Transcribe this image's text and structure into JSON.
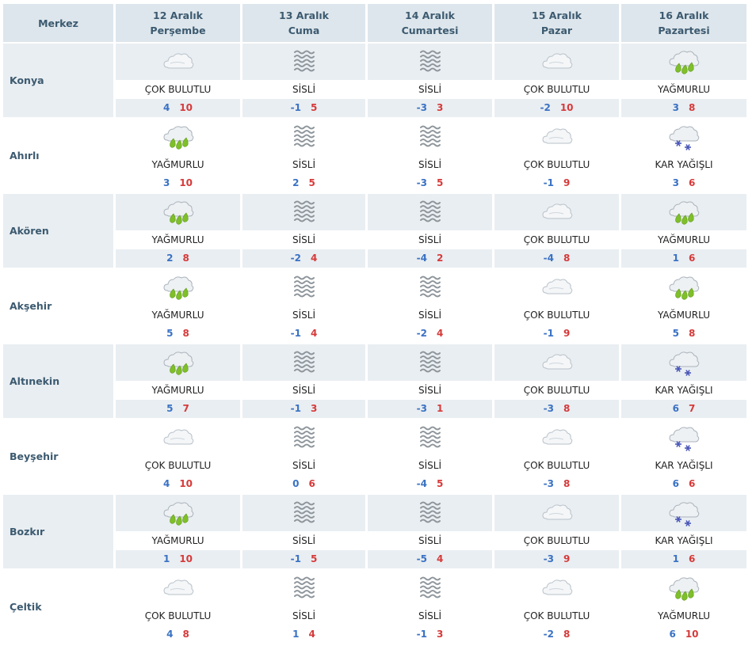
{
  "header": {
    "region": "Merkez",
    "days": [
      {
        "date": "12 Aralık",
        "weekday": "Perşembe"
      },
      {
        "date": "13 Aralık",
        "weekday": "Cuma"
      },
      {
        "date": "14 Aralık",
        "weekday": "Cumartesi"
      },
      {
        "date": "15 Aralık",
        "weekday": "Pazar"
      },
      {
        "date": "16 Aralık",
        "weekday": "Pazartesi"
      }
    ]
  },
  "labels": {
    "cok_bulutlu": "ÇOK BULUTLU",
    "sisli": "SİSLİ",
    "yagmurlu": "YAĞMURLU",
    "kar_yagisli": "KAR YAĞIŞLI"
  },
  "colors": {
    "header_bg": "#dde6ec",
    "stripe_bg": "#e9eef2",
    "min_temp": "#3a72c4",
    "max_temp": "#d63a3a"
  },
  "rows": [
    {
      "city": "Konya",
      "days": [
        {
          "cond": "cok_bulutlu",
          "min": "4",
          "max": "10"
        },
        {
          "cond": "sisli",
          "min": "-1",
          "max": "5"
        },
        {
          "cond": "sisli",
          "min": "-3",
          "max": "3"
        },
        {
          "cond": "cok_bulutlu",
          "min": "-2",
          "max": "10"
        },
        {
          "cond": "yagmurlu",
          "min": "3",
          "max": "8"
        }
      ]
    },
    {
      "city": "Ahırlı",
      "days": [
        {
          "cond": "yagmurlu",
          "min": "3",
          "max": "10"
        },
        {
          "cond": "sisli",
          "min": "2",
          "max": "5"
        },
        {
          "cond": "sisli",
          "min": "-3",
          "max": "5"
        },
        {
          "cond": "cok_bulutlu",
          "min": "-1",
          "max": "9"
        },
        {
          "cond": "kar_yagisli",
          "min": "3",
          "max": "6"
        }
      ]
    },
    {
      "city": "Akören",
      "days": [
        {
          "cond": "yagmurlu",
          "min": "2",
          "max": "8"
        },
        {
          "cond": "sisli",
          "min": "-2",
          "max": "4"
        },
        {
          "cond": "sisli",
          "min": "-4",
          "max": "2"
        },
        {
          "cond": "cok_bulutlu",
          "min": "-4",
          "max": "8"
        },
        {
          "cond": "yagmurlu",
          "min": "1",
          "max": "6"
        }
      ]
    },
    {
      "city": "Akşehir",
      "days": [
        {
          "cond": "yagmurlu",
          "min": "5",
          "max": "8"
        },
        {
          "cond": "sisli",
          "min": "-1",
          "max": "4"
        },
        {
          "cond": "sisli",
          "min": "-2",
          "max": "4"
        },
        {
          "cond": "cok_bulutlu",
          "min": "-1",
          "max": "9"
        },
        {
          "cond": "yagmurlu",
          "min": "5",
          "max": "8"
        }
      ]
    },
    {
      "city": "Altınekin",
      "days": [
        {
          "cond": "yagmurlu",
          "min": "5",
          "max": "7"
        },
        {
          "cond": "sisli",
          "min": "-1",
          "max": "3"
        },
        {
          "cond": "sisli",
          "min": "-3",
          "max": "1"
        },
        {
          "cond": "cok_bulutlu",
          "min": "-3",
          "max": "8"
        },
        {
          "cond": "kar_yagisli",
          "min": "6",
          "max": "7"
        }
      ]
    },
    {
      "city": "Beyşehir",
      "days": [
        {
          "cond": "cok_bulutlu",
          "min": "4",
          "max": "10"
        },
        {
          "cond": "sisli",
          "min": "0",
          "max": "6"
        },
        {
          "cond": "sisli",
          "min": "-4",
          "max": "5"
        },
        {
          "cond": "cok_bulutlu",
          "min": "-3",
          "max": "8"
        },
        {
          "cond": "kar_yagisli",
          "min": "6",
          "max": "6"
        }
      ]
    },
    {
      "city": "Bozkır",
      "days": [
        {
          "cond": "yagmurlu",
          "min": "1",
          "max": "10"
        },
        {
          "cond": "sisli",
          "min": "-1",
          "max": "5"
        },
        {
          "cond": "sisli",
          "min": "-5",
          "max": "4"
        },
        {
          "cond": "cok_bulutlu",
          "min": "-3",
          "max": "9"
        },
        {
          "cond": "kar_yagisli",
          "min": "1",
          "max": "6"
        }
      ]
    },
    {
      "city": "Çeltik",
      "days": [
        {
          "cond": "cok_bulutlu",
          "min": "4",
          "max": "8"
        },
        {
          "cond": "sisli",
          "min": "1",
          "max": "4"
        },
        {
          "cond": "sisli",
          "min": "-1",
          "max": "3"
        },
        {
          "cond": "cok_bulutlu",
          "min": "-2",
          "max": "8"
        },
        {
          "cond": "yagmurlu",
          "min": "6",
          "max": "10"
        }
      ]
    }
  ]
}
